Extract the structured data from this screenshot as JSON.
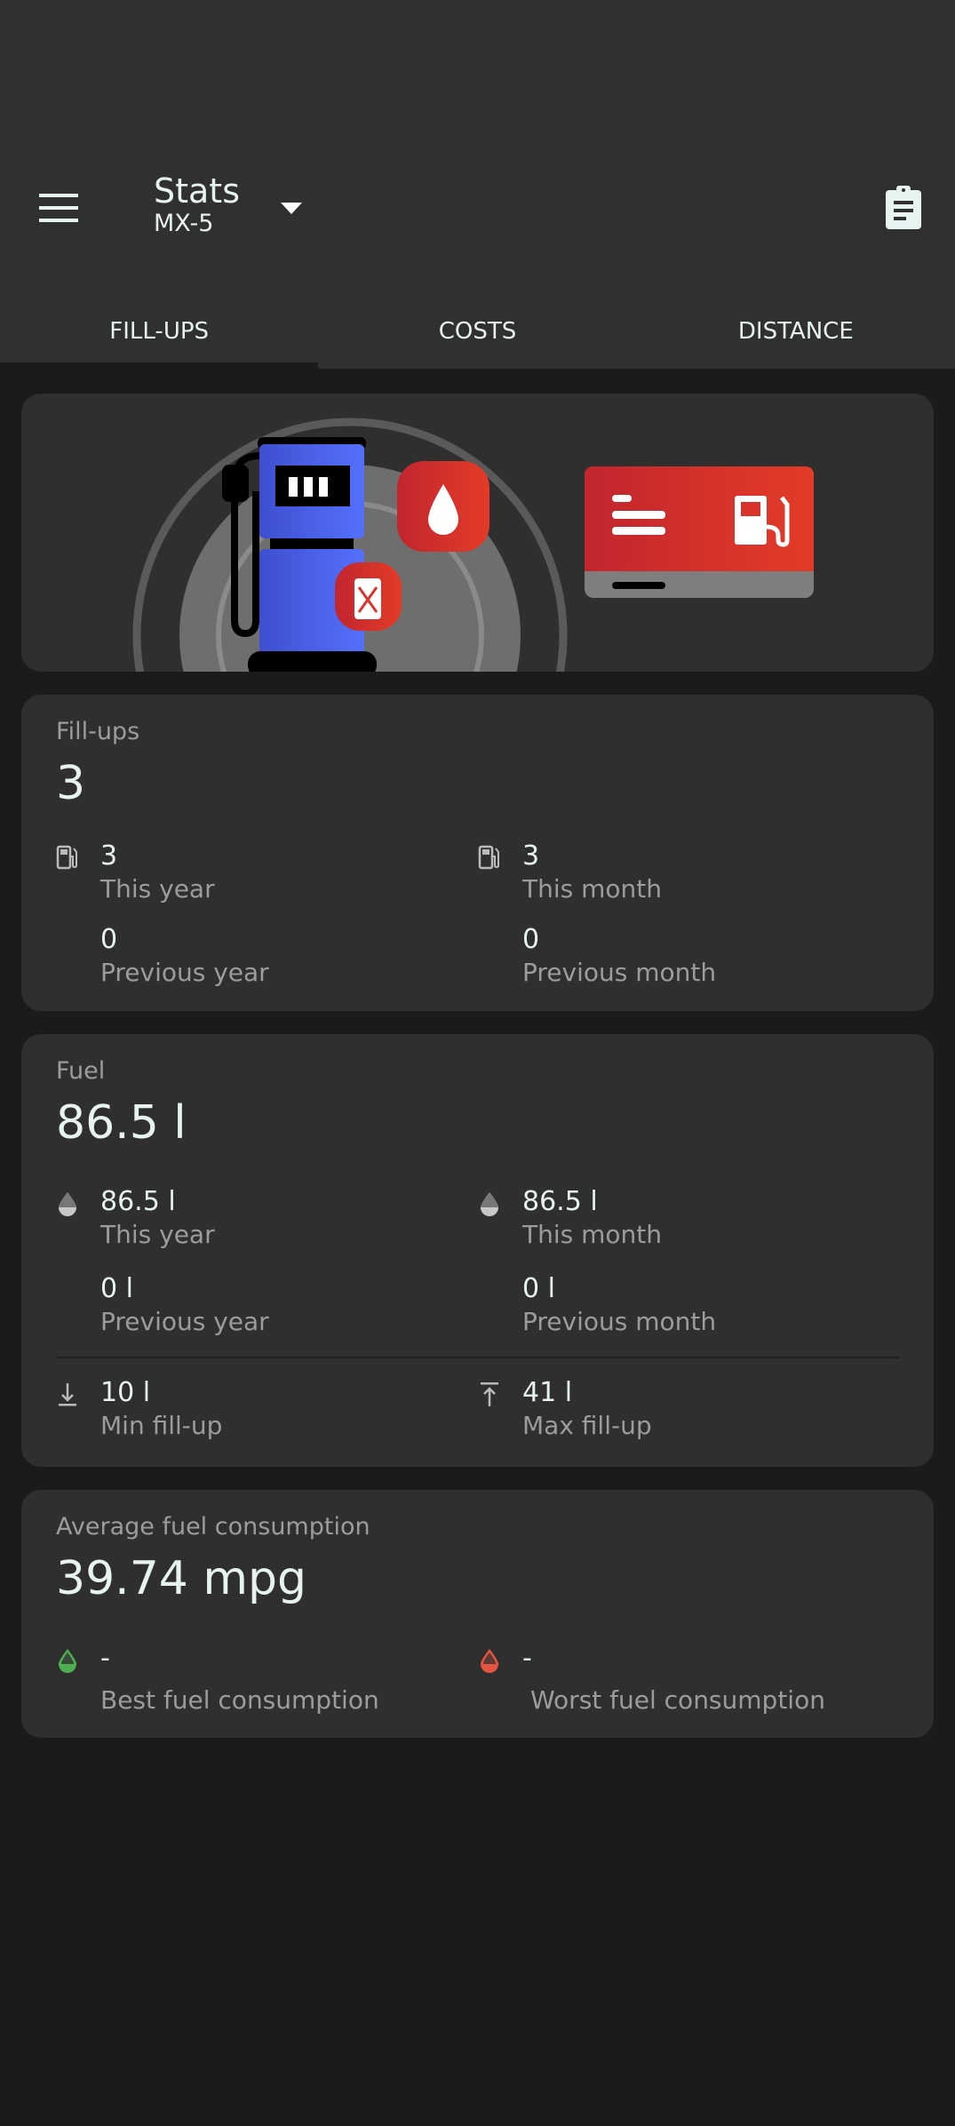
{
  "header": {
    "title": "Stats",
    "subtitle": "MX-5",
    "menu_icon": "menu-icon",
    "dropdown_icon": "arrow-drop-down-icon",
    "action_icon": "clipboard-icon"
  },
  "tabs": [
    {
      "label": "FILL-UPS",
      "active": true
    },
    {
      "label": "COSTS",
      "active": false
    },
    {
      "label": "DISTANCE",
      "active": false
    }
  ],
  "colors": {
    "pump_blue": "#4f6af5",
    "badge_red": "#d9342b",
    "best": "#4caf50",
    "worst": "#e4553f",
    "background": "#1b1b1b",
    "card": "#2f2f2f"
  },
  "fillups": {
    "label": "Fill-ups",
    "value": "3",
    "stats": [
      {
        "value": "3",
        "label": "This year",
        "icon": "fuel-pump-icon"
      },
      {
        "value": "3",
        "label": "This month",
        "icon": "fuel-pump-icon"
      },
      {
        "value": "0",
        "label": "Previous year"
      },
      {
        "value": "0",
        "label": "Previous month"
      }
    ]
  },
  "fuel": {
    "label": "Fuel",
    "value": "86.5 l",
    "stats": [
      {
        "value": "86.5 l",
        "label": "This year",
        "icon": "drop-icon"
      },
      {
        "value": "86.5 l",
        "label": "This month",
        "icon": "drop-icon"
      },
      {
        "value": "0 l",
        "label": "Previous year"
      },
      {
        "value": "0 l",
        "label": "Previous month"
      },
      {
        "value": "10 l",
        "label": "Min fill-up",
        "icon": "arrow-to-bottom-icon"
      },
      {
        "value": "41 l",
        "label": "Max fill-up",
        "icon": "arrow-to-top-icon"
      }
    ]
  },
  "consumption": {
    "label": "Average fuel consumption",
    "value": "39.74 mpg",
    "stats": [
      {
        "value": "-",
        "label": "Best fuel consumption",
        "icon": "drop-green-icon"
      },
      {
        "value": "-",
        "label": "Worst fuel consumption",
        "icon": "drop-red-icon"
      }
    ]
  }
}
